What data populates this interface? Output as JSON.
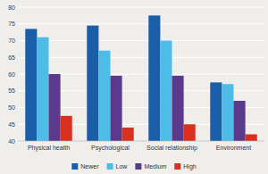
{
  "chart_data": {
    "type": "bar",
    "categories": [
      "Physical health",
      "Psychological",
      "Social relationship",
      "Environment"
    ],
    "series": [
      {
        "name": "Newer",
        "color": "#1A5EA8",
        "values": [
          73.5,
          74.5,
          77.5,
          57.5
        ]
      },
      {
        "name": "Low",
        "color": "#4DBDE8",
        "values": [
          71.0,
          67.0,
          70.0,
          57.0
        ]
      },
      {
        "name": "Medium",
        "color": "#5B3A8E",
        "values": [
          60.0,
          59.5,
          59.5,
          52.0
        ]
      },
      {
        "name": "High",
        "color": "#D93020",
        "values": [
          47.5,
          44.0,
          45.0,
          42.0
        ]
      }
    ],
    "ylim": [
      40,
      80
    ],
    "yticks": [
      40,
      45,
      50,
      55,
      60,
      65,
      70,
      75,
      80
    ],
    "grid": true,
    "legend": "bottom"
  }
}
